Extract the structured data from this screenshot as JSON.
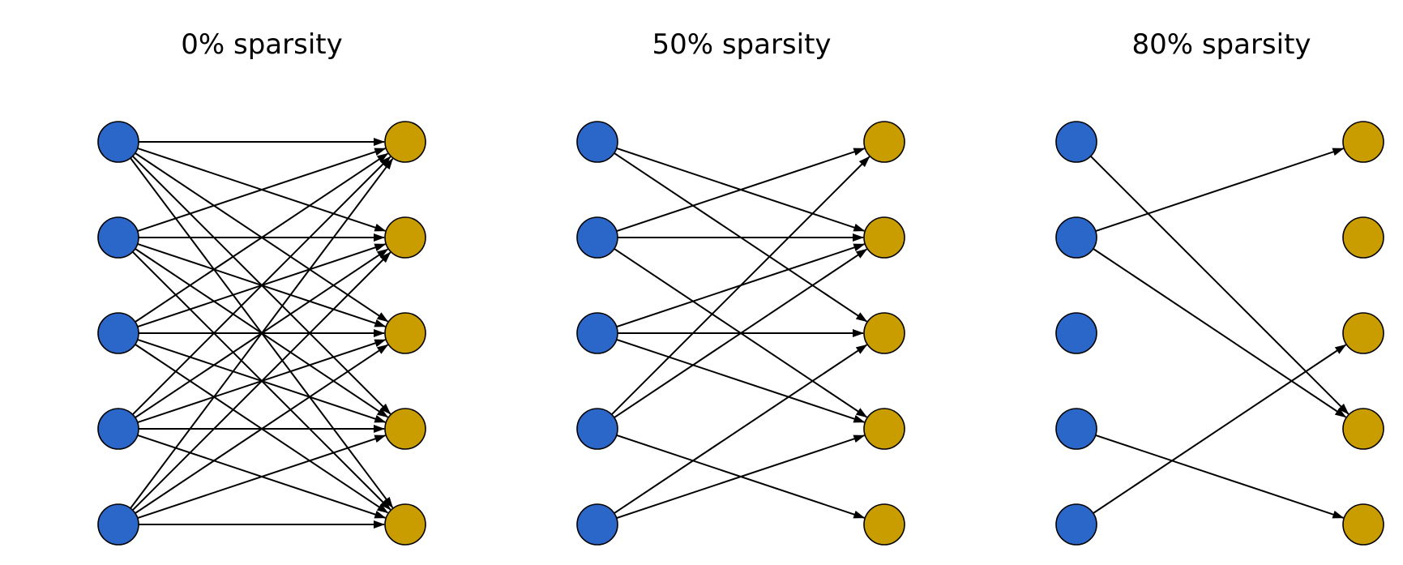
{
  "colors": {
    "input_node": "#2b66c9",
    "output_node": "#c99c00",
    "edge": "#000000",
    "background": "#ffffff"
  },
  "panels": [
    {
      "title": "0% sparsity",
      "edges": [
        [
          0,
          0
        ],
        [
          0,
          1
        ],
        [
          0,
          2
        ],
        [
          0,
          3
        ],
        [
          0,
          4
        ],
        [
          1,
          0
        ],
        [
          1,
          1
        ],
        [
          1,
          2
        ],
        [
          1,
          3
        ],
        [
          1,
          4
        ],
        [
          2,
          0
        ],
        [
          2,
          1
        ],
        [
          2,
          2
        ],
        [
          2,
          3
        ],
        [
          2,
          4
        ],
        [
          3,
          0
        ],
        [
          3,
          1
        ],
        [
          3,
          2
        ],
        [
          3,
          3
        ],
        [
          3,
          4
        ],
        [
          4,
          0
        ],
        [
          4,
          1
        ],
        [
          4,
          2
        ],
        [
          4,
          3
        ],
        [
          4,
          4
        ]
      ]
    },
    {
      "title": "50% sparsity",
      "edges": [
        [
          0,
          1
        ],
        [
          0,
          2
        ],
        [
          1,
          0
        ],
        [
          1,
          1
        ],
        [
          1,
          3
        ],
        [
          2,
          1
        ],
        [
          2,
          2
        ],
        [
          2,
          3
        ],
        [
          3,
          0
        ],
        [
          3,
          1
        ],
        [
          3,
          4
        ],
        [
          4,
          2
        ],
        [
          4,
          3
        ]
      ]
    },
    {
      "title": "80% sparsity",
      "edges": [
        [
          0,
          3
        ],
        [
          1,
          0
        ],
        [
          1,
          3
        ],
        [
          3,
          4
        ],
        [
          4,
          2
        ]
      ]
    }
  ]
}
